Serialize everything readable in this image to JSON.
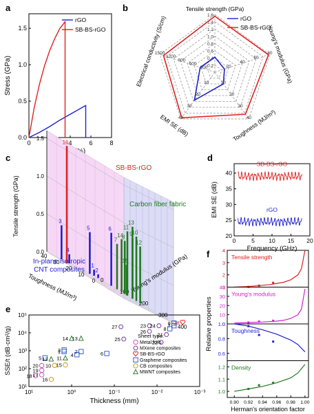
{
  "panels": {
    "a": {
      "label": "a"
    },
    "b": {
      "label": "b"
    },
    "c": {
      "label": "c"
    },
    "d": {
      "label": "d"
    },
    "e": {
      "label": "e"
    },
    "f": {
      "label": "f"
    }
  },
  "colors": {
    "red": "#e02020",
    "blue": "#1f1fd0",
    "green": "#1e7a1e",
    "magenta": "#d020d0",
    "gray": "#888888",
    "pink": "#f6d8f6",
    "lavender": "#dcdcf6",
    "gridgreen": "#e8f6e8"
  },
  "chart_data": [
    {
      "id": "a",
      "type": "line",
      "xlabel": "Strain (%)",
      "ylabel": "Stress (GPa)",
      "xlim": [
        0,
        8
      ],
      "ylim": [
        0,
        1.7
      ],
      "xticks": [
        "0",
        "2",
        "4",
        "6",
        "8"
      ],
      "yticks": [
        "0.0",
        "0.5",
        "1.0",
        "1.5"
      ],
      "series": [
        {
          "name": "rGO",
          "color": "#1f1fd0",
          "points": [
            [
              0,
              0
            ],
            [
              1,
              0.07
            ],
            [
              2,
              0.15
            ],
            [
              3,
              0.24
            ],
            [
              4,
              0.32
            ],
            [
              5,
              0.4
            ],
            [
              5.5,
              0.44
            ],
            [
              5.5,
              0
            ]
          ]
        },
        {
          "name": "SB-BS-rGO",
          "color": "#e02020",
          "points": [
            [
              0,
              0
            ],
            [
              0.5,
              0.4
            ],
            [
              1,
              0.72
            ],
            [
              1.5,
              0.98
            ],
            [
              2,
              1.19
            ],
            [
              2.5,
              1.36
            ],
            [
              3,
              1.5
            ],
            [
              3.5,
              1.59
            ],
            [
              3.5,
              0
            ]
          ]
        }
      ]
    },
    {
      "id": "b",
      "type": "radar",
      "axes": [
        {
          "label": "Tensile strength (GPa)",
          "ticks": [
            "0.2",
            "0.4",
            "0.6",
            "0.8",
            "1.0",
            "1.2",
            "1.4",
            "1.6"
          ]
        },
        {
          "label": "Young's modulus (GPa)",
          "ticks": [
            "10",
            "20",
            "30",
            "40",
            "50",
            "60",
            "70",
            "80"
          ]
        },
        {
          "label": "Toughness (MJ/m³)",
          "ticks": [
            "5",
            "10",
            "15",
            "20",
            "25",
            "30",
            "35",
            "40"
          ]
        },
        {
          "label": "EMI SE (dB)",
          "ticks": [
            "5",
            "10",
            "15",
            "20",
            "25",
            "30",
            "35",
            "40"
          ]
        },
        {
          "label": "Electrical conductivity (S/cm)",
          "ticks": [
            "150",
            "300",
            "450",
            "600",
            "750",
            "900",
            "1050",
            "1200",
            "1350",
            "1500"
          ]
        }
      ],
      "series": [
        {
          "name": "rGO",
          "color": "#1f1fd0",
          "values": [
            0.42,
            14,
            10,
            24,
            400
          ]
        },
        {
          "name": "SB-BS-rGO",
          "color": "#e02020",
          "values": [
            1.55,
            78,
            36,
            39,
            1400
          ]
        }
      ]
    },
    {
      "id": "c",
      "type": "bar3d",
      "xlabel": "Toughness (MJ/m³)",
      "ylabel": "Young's modulus (GPa)",
      "zlabel": "Tensile strength (GPa)",
      "xticks": [
        "0",
        "10",
        "20",
        "30",
        "40"
      ],
      "yticks": [
        "0",
        "100",
        "200",
        "300",
        "400"
      ],
      "zticks": [
        "0.0",
        "0.5",
        "1.0",
        "1.5"
      ],
      "annotations": [
        "SB-BS-rGO",
        "Carbon fiber fabric",
        "In-plane isotropic CNT composites"
      ],
      "bars": [
        {
          "id": "16",
          "group": "SB-BS-rGO",
          "toughness": 36,
          "modulus": 78,
          "strength": 1.55
        },
        {
          "id": "1",
          "group": "In-plane isotropic CNT composites",
          "toughness": 5,
          "modulus": 20,
          "strength": 0.08
        },
        {
          "id": "2",
          "group": "In-plane isotropic CNT composites",
          "toughness": 4,
          "modulus": 35,
          "strength": 0.05
        },
        {
          "id": "3",
          "group": "In-plane isotropic CNT composites",
          "toughness": 30,
          "modulus": 12,
          "strength": 0.45
        },
        {
          "id": "4",
          "group": "In-plane isotropic CNT composites",
          "toughness": 25,
          "modulus": 20,
          "strength": 0.12
        },
        {
          "id": "5",
          "group": "In-plane isotropic CNT composites",
          "toughness": 10,
          "modulus": 30,
          "strength": 0.55
        },
        {
          "id": "6",
          "group": "In-plane isotropic CNT composites",
          "toughness": 2,
          "modulus": 90,
          "strength": 0.7
        },
        {
          "id": "7",
          "group": "Carbon fiber fabric",
          "toughness": 2,
          "modulus": 120,
          "strength": 0.6
        },
        {
          "id": "8",
          "group": "Carbon fiber fabric",
          "toughness": 2,
          "modulus": 160,
          "strength": 0.7
        },
        {
          "id": "9",
          "group": "Carbon fiber fabric",
          "toughness": 2,
          "modulus": 200,
          "strength": 0.8
        },
        {
          "id": "10",
          "group": "Carbon fiber fabric",
          "toughness": 2,
          "modulus": 220,
          "strength": 0.85
        },
        {
          "id": "11",
          "group": "Carbon fiber fabric",
          "toughness": 3,
          "modulus": 180,
          "strength": 0.85
        },
        {
          "id": "12",
          "group": "Carbon fiber fabric",
          "toughness": 2,
          "modulus": 240,
          "strength": 0.75
        },
        {
          "id": "13",
          "group": "Carbon fiber fabric",
          "toughness": 2,
          "modulus": 200,
          "strength": 0.95
        },
        {
          "id": "14",
          "group": "Carbon fiber fabric",
          "toughness": 3,
          "modulus": 150,
          "strength": 0.7
        },
        {
          "id": "15",
          "group": "Carbon fiber fabric",
          "toughness": 2,
          "modulus": 170,
          "strength": 0.4
        }
      ]
    },
    {
      "id": "d",
      "type": "line",
      "xlabel": "Frequency (GHz)",
      "ylabel": "EMI SE (dB)",
      "xlim": [
        0,
        20
      ],
      "ylim": [
        20,
        43
      ],
      "xticks": [
        "0",
        "5",
        "10",
        "15",
        "20"
      ],
      "yticks": [
        "20",
        "25",
        "30",
        "35",
        "40"
      ],
      "series": [
        {
          "name": "SB-BS-rGO",
          "color": "#e02020",
          "mean": 39,
          "amplitude": 1.5
        },
        {
          "name": "rGO",
          "color": "#1f1fd0",
          "mean": 24.5,
          "amplitude": 1.5
        }
      ],
      "x_range": [
        1,
        18
      ]
    },
    {
      "id": "e",
      "type": "scatter",
      "xlabel": "Thickness (mm)",
      "ylabel": "SSE/t (dB·cm²/g)",
      "x_scale": "log-reversed",
      "y_scale": "log",
      "xlim": [
        10,
        0.001
      ],
      "ylim": [
        10,
        100000
      ],
      "xticks": [
        "10¹",
        "10⁰",
        "10⁻¹",
        "10⁻²",
        "10⁻³"
      ],
      "yticks": [
        "10¹",
        "10²",
        "10³",
        "10⁴",
        "10⁵"
      ],
      "legend_title": "Sheet type:",
      "legend": [
        "Metal foils",
        "MXene composites",
        "SB-BS-rGO",
        "Graphene composites",
        "CB composites",
        "MWNT composites"
      ],
      "points": [
        {
          "id": "1",
          "type": "Graphene composites",
          "x": 1.5,
          "y": 900
        },
        {
          "id": "2",
          "type": "Graphene composites",
          "x": 0.6,
          "y": 900
        },
        {
          "id": "3",
          "type": "Graphene composites",
          "x": 1.5,
          "y": 1100
        },
        {
          "id": "4",
          "type": "Graphene composites",
          "x": 0.75,
          "y": 600
        },
        {
          "id": "5",
          "type": "Graphene composites",
          "x": 4.2,
          "y": 400
        },
        {
          "id": "6",
          "type": "Graphene composites",
          "x": 0.15,
          "y": 700
        },
        {
          "id": "7",
          "type": "Graphene composites",
          "x": 0.004,
          "y": 25000
        },
        {
          "id": "8",
          "type": "Graphene composites",
          "x": 0.005,
          "y": 17000
        },
        {
          "id": "9",
          "type": "Graphene composites",
          "x": 0.004,
          "y": 35000
        },
        {
          "id": "10",
          "type": "CB composites",
          "x": 2.5,
          "y": 150
        },
        {
          "id": "11",
          "type": "MWNT composites",
          "x": 1.4,
          "y": 400
        },
        {
          "id": "12",
          "type": "MWNT composites",
          "x": 3,
          "y": 350
        },
        {
          "id": "13",
          "type": "MWNT composites",
          "x": 0.6,
          "y": 5000
        },
        {
          "id": "14",
          "type": "MWNT composites",
          "x": 1.0,
          "y": 5000
        },
        {
          "id": "15",
          "type": "CB composites",
          "x": 1.4,
          "y": 160
        },
        {
          "id": "16",
          "type": "CB composites",
          "x": 3,
          "y": 25
        },
        {
          "id": "17",
          "type": "Metal foils",
          "x": 5,
          "y": 45
        },
        {
          "id": "18",
          "type": "Metal foils",
          "x": 7,
          "y": 40
        },
        {
          "id": "19",
          "type": "Metal foils",
          "x": 5,
          "y": 80
        },
        {
          "id": "20",
          "type": "Metal foils",
          "x": 5,
          "y": 150
        },
        {
          "id": "21",
          "type": "MXene composites",
          "x": 0.006,
          "y": 8000
        },
        {
          "id": "22",
          "type": "MXene composites",
          "x": 0.008,
          "y": 3000
        },
        {
          "id": "23",
          "type": "MXene composites",
          "x": 0.015,
          "y": 25000
        },
        {
          "id": "24",
          "type": "MXene composites",
          "x": 0.009,
          "y": 25000
        },
        {
          "id": "25",
          "type": "MXene composites",
          "x": 0.06,
          "y": 4500
        },
        {
          "id": "26",
          "type": "MXene composites",
          "x": 0.015,
          "y": 12000
        },
        {
          "id": "27",
          "type": "MXene composites",
          "x": 0.07,
          "y": 22000
        },
        {
          "id": "28",
          "type": "SB-BS-rGO",
          "x": 0.0025,
          "y": 38000
        }
      ]
    },
    {
      "id": "f",
      "type": "line",
      "xlabel": "Herman's orientation factor",
      "ylabel": "Relative properties",
      "xlim": [
        0.89,
        1.005
      ],
      "xticks": [
        "0.90",
        "0.92",
        "0.94",
        "0.96",
        "0.98",
        "1.00"
      ],
      "subplots": [
        {
          "name": "Tensile strength",
          "color": "#e02020",
          "ylim": [
            1,
            4
          ],
          "yticks": [
            "1",
            "2",
            "3",
            "4"
          ],
          "x": [
            0.9,
            0.92,
            0.93,
            0.94,
            0.95,
            0.96,
            0.97,
            0.98,
            0.99,
            0.995,
            1.0
          ],
          "y": [
            1.0,
            1.05,
            1.1,
            1.15,
            1.2,
            1.3,
            1.4,
            1.6,
            2.0,
            2.5,
            4.0
          ],
          "markers": [
            [
              0.92,
              1.02
            ],
            [
              0.935,
              1.12
            ],
            [
              0.955,
              1.35
            ]
          ]
        },
        {
          "name": "Young's modulus",
          "color": "#d020d0",
          "ylim": [
            0,
            40
          ],
          "yticks": [
            "0",
            "10",
            "20",
            "30",
            "40"
          ],
          "x": [
            0.9,
            0.92,
            0.94,
            0.96,
            0.97,
            0.98,
            0.99,
            0.995,
            1.0
          ],
          "y": [
            1,
            1.5,
            2,
            3,
            4,
            6,
            10,
            16,
            38
          ],
          "markers": [
            [
              0.92,
              1.5
            ],
            [
              0.935,
              2.5
            ],
            [
              0.955,
              3.5
            ]
          ]
        },
        {
          "name": "Toughness",
          "color": "#1f1fd0",
          "ylim": [
            0.5,
            1.0
          ],
          "yticks": [
            "0.6",
            "0.8",
            "1.0"
          ],
          "x": [
            0.9,
            0.92,
            0.94,
            0.96,
            0.98,
            0.99,
            1.0
          ],
          "y": [
            1.0,
            0.97,
            0.92,
            0.86,
            0.78,
            0.72,
            0.62
          ],
          "markers": [
            [
              0.92,
              0.97
            ],
            [
              0.935,
              0.85
            ],
            [
              0.955,
              0.76
            ]
          ]
        },
        {
          "name": "Density",
          "color": "#1e7a1e",
          "ylim": [
            0.95,
            1.25
          ],
          "yticks": [
            "1.0",
            "1.1",
            "1.2"
          ],
          "x": [
            0.9,
            0.92,
            0.94,
            0.96,
            0.98,
            0.99,
            1.0
          ],
          "y": [
            1.0,
            1.02,
            1.04,
            1.07,
            1.11,
            1.15,
            1.22
          ],
          "markers": [
            [
              0.92,
              1.02
            ],
            [
              0.935,
              1.05
            ],
            [
              0.955,
              1.07
            ]
          ]
        }
      ]
    }
  ]
}
